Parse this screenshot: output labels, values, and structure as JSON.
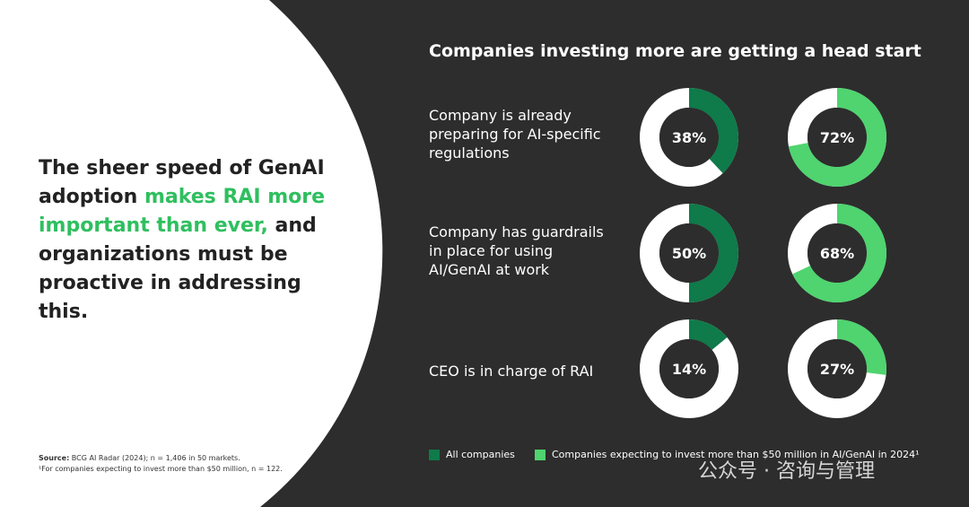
{
  "headline": [
    {
      "text": "The sheer speed of GenAI adoption ",
      "highlight": false
    },
    {
      "text": "makes RAI more important than ever,",
      "highlight": true
    },
    {
      "text": " and organizations must be proactive in addressing this.",
      "highlight": false
    }
  ],
  "source_label": "Source:",
  "source_text": " BCG AI Radar (2024); n = 1,406 in 50 markets.",
  "footnote": "¹For companies expecting to invest more than $50 million, n = 122.",
  "watermark": "公众号 · 咨询与管理",
  "chart_data": {
    "type": "donut",
    "title": "Companies investing more are getting a head start",
    "categories": [
      "Company is already preparing for AI-specific regulations",
      "Company has guardrails in place for using AI/GenAI at work",
      "CEO is in charge of RAI"
    ],
    "series": [
      {
        "name": "All companies",
        "color": "#0f7a4a",
        "values": [
          38,
          50,
          14
        ],
        "value_labels": [
          "38%",
          "50%",
          "14%"
        ]
      },
      {
        "name": "Companies expecting to invest more than $50 million in AI/GenAI in 2024¹",
        "color": "#4fd46f",
        "values": [
          72,
          68,
          27
        ],
        "value_labels": [
          "72%",
          "68%",
          "27%"
        ]
      }
    ]
  }
}
